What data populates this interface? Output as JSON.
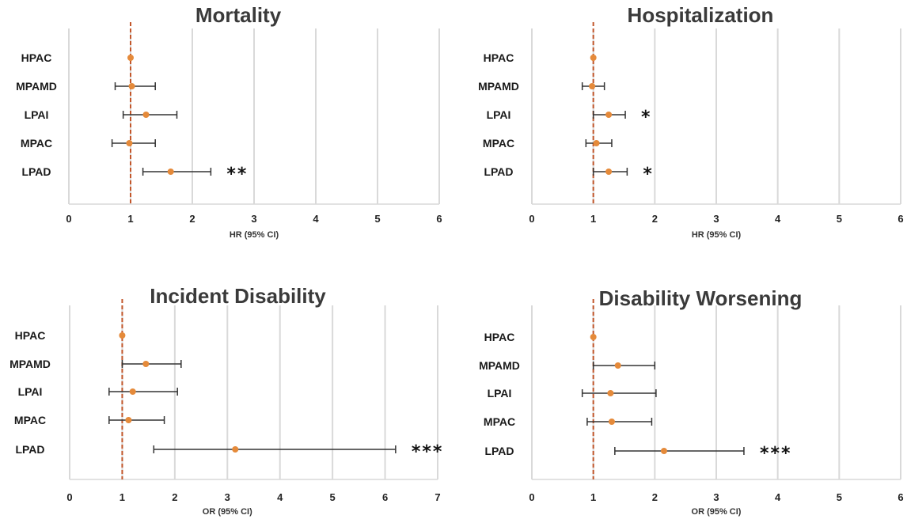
{
  "colors": {
    "point": "#e58a3a",
    "reference_line": "#c2572b",
    "errorbar": "#333333",
    "gridline": "#d9d9d9"
  },
  "chart_data": [
    {
      "type": "forest",
      "title": "Mortality",
      "xlabel": "HR (95% CI)",
      "xlim": [
        0,
        6
      ],
      "xticks": [
        "0",
        "1",
        "2",
        "3",
        "4",
        "5",
        "6"
      ],
      "reference": 1,
      "categories": [
        "HPAC",
        "MPAMD",
        "LPAI",
        "MPAC",
        "LPAD"
      ],
      "estimates": [
        1.0,
        1.02,
        1.25,
        0.98,
        1.65
      ],
      "ci_low": [
        1.0,
        0.75,
        0.88,
        0.7,
        1.2
      ],
      "ci_high": [
        1.0,
        1.4,
        1.75,
        1.4,
        2.3
      ],
      "significance": [
        "",
        "",
        "",
        "",
        "**"
      ]
    },
    {
      "type": "forest",
      "title": "Hospitalization",
      "xlabel": "HR (95% CI)",
      "xlim": [
        0,
        6
      ],
      "xticks": [
        "0",
        "1",
        "2",
        "3",
        "4",
        "5",
        "6"
      ],
      "reference": 1,
      "categories": [
        "HPAC",
        "MPAMD",
        "LPAI",
        "MPAC",
        "LPAD"
      ],
      "estimates": [
        1.0,
        0.98,
        1.25,
        1.05,
        1.25
      ],
      "ci_low": [
        1.0,
        0.82,
        1.0,
        0.88,
        1.0
      ],
      "ci_high": [
        1.0,
        1.18,
        1.52,
        1.3,
        1.55
      ],
      "significance": [
        "",
        "",
        "*",
        "",
        "*"
      ]
    },
    {
      "type": "forest",
      "title": "Incident Disability",
      "xlabel": "OR (95% CI)",
      "xlim": [
        0,
        7
      ],
      "xticks": [
        "0",
        "1",
        "2",
        "3",
        "4",
        "5",
        "6",
        "7"
      ],
      "reference": 1,
      "categories": [
        "HPAC",
        "MPAMD",
        "LPAI",
        "MPAC",
        "LPAD"
      ],
      "estimates": [
        1.0,
        1.45,
        1.2,
        1.12,
        3.15
      ],
      "ci_low": [
        1.0,
        1.0,
        0.75,
        0.75,
        1.6
      ],
      "ci_high": [
        1.0,
        2.12,
        2.05,
        1.8,
        6.2
      ],
      "significance": [
        "",
        "",
        "",
        "",
        "***"
      ]
    },
    {
      "type": "forest",
      "title": "Disability Worsening",
      "xlabel": "OR (95% CI)",
      "xlim": [
        0,
        6
      ],
      "xticks": [
        "0",
        "1",
        "2",
        "3",
        "4",
        "5",
        "6"
      ],
      "reference": 1,
      "categories": [
        "HPAC",
        "MPAMD",
        "LPAI",
        "MPAC",
        "LPAD"
      ],
      "estimates": [
        1.0,
        1.4,
        1.28,
        1.3,
        2.15
      ],
      "ci_low": [
        1.0,
        1.0,
        0.82,
        0.9,
        1.35
      ],
      "ci_high": [
        1.0,
        2.0,
        2.02,
        1.95,
        3.45
      ],
      "significance": [
        "",
        "",
        "",
        "",
        "***"
      ]
    }
  ]
}
